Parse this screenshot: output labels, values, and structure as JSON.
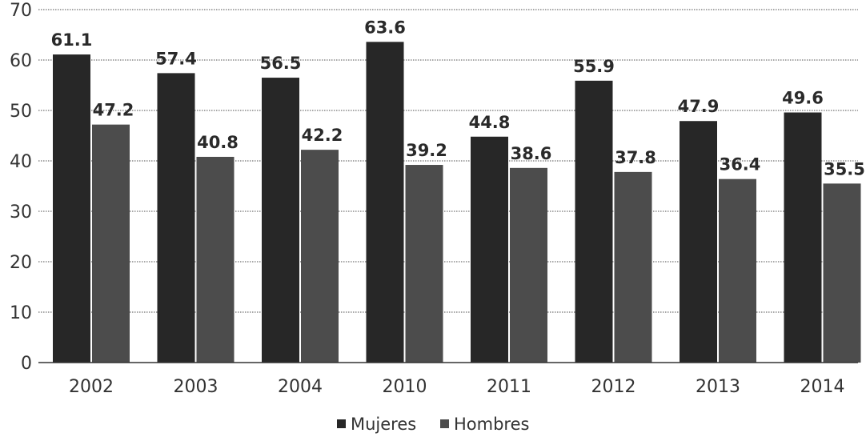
{
  "chart_data": {
    "type": "bar",
    "categories": [
      "2002",
      "2003",
      "2004",
      "2010",
      "2011",
      "2012",
      "2013",
      "2014"
    ],
    "series": [
      {
        "name": "Mujeres",
        "color": "#272727",
        "values": [
          61.1,
          57.4,
          56.5,
          63.6,
          44.8,
          55.9,
          47.9,
          49.6
        ],
        "labels": [
          "61.1",
          "57.4",
          "56.5",
          "63.6",
          "44.8",
          "55.9",
          "47.9",
          "49.6"
        ]
      },
      {
        "name": "Hombres",
        "color": "#4c4c4c",
        "values": [
          47.2,
          40.8,
          42.2,
          39.2,
          38.6,
          37.8,
          36.4,
          35.5
        ],
        "labels": [
          "47.2",
          "40.8",
          "42.2",
          "39.2",
          "38.6",
          "37.8",
          "36.4",
          "35.5"
        ]
      }
    ],
    "title": "",
    "xlabel": "",
    "ylabel": "",
    "ylim": [
      0,
      70
    ],
    "yticks": [
      "0",
      "10",
      "20",
      "30",
      "40",
      "50",
      "60",
      "70"
    ],
    "grid": true,
    "legend": "bottom-center"
  }
}
